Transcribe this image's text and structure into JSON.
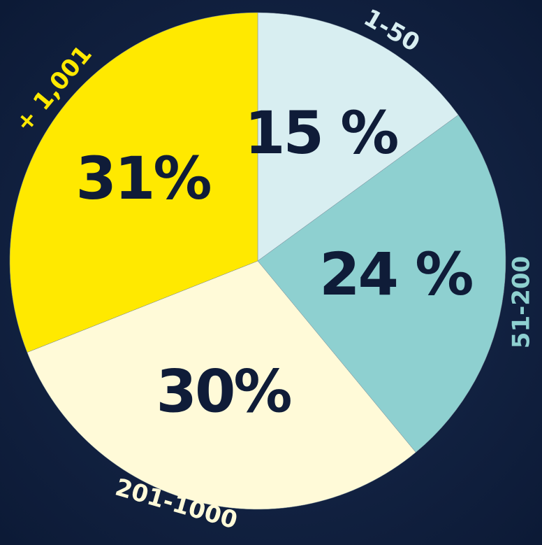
{
  "chart_data": {
    "type": "pie",
    "categories": [
      "1-50",
      "51-200",
      "201-1000",
      "+ 1,001"
    ],
    "values": [
      15,
      24,
      30,
      31
    ],
    "value_labels": [
      "15 %",
      "24 %",
      "30%",
      "31%"
    ],
    "colors": [
      "#d8eef1",
      "#8ed0d0",
      "#fffad8",
      "#ffe900"
    ]
  }
}
